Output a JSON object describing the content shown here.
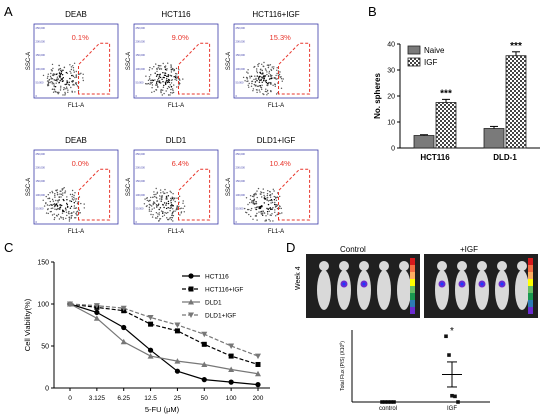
{
  "panel_letters": {
    "a": "A",
    "b": "B",
    "c": "C",
    "d": "D"
  },
  "flow": {
    "xlabel": "FL1-A",
    "ylabel": "SSC-A",
    "tick_labels": [
      "250,000",
      "200,000",
      "150,000",
      "100,000",
      "50,000",
      "0"
    ],
    "plots": [
      {
        "title": "DEAB",
        "percent": "0.1%"
      },
      {
        "title": "HCT116",
        "percent": "9.0%"
      },
      {
        "title": "HCT116+IGF",
        "percent": "15.3%"
      },
      {
        "title": "DEAB",
        "percent": "0.0%"
      },
      {
        "title": "DLD1",
        "percent": "6.4%"
      },
      {
        "title": "DLD1+IGF",
        "percent": "10.4%"
      }
    ]
  },
  "colors": {
    "flow_percent": "#e8352b",
    "gate": "#e8352b",
    "mice_panel": "#202020"
  },
  "mice": {
    "week_label": "Week 4",
    "control_label": "Control",
    "igf_label": "+IGF",
    "scatter_ylabel": "Total Flux (P/S) (X10",
    "scatter_ylabel_sup": "6",
    "scatter_ylabel_end": ")",
    "scatter_categories": [
      "control",
      "IGF"
    ],
    "star": "*"
  },
  "chart_data": [
    {
      "type": "bar",
      "panel": "B",
      "categories": [
        "HCT116",
        "DLD-1"
      ],
      "ylabel": "No. spheres",
      "ylim": [
        0,
        40
      ],
      "yticks": [
        "0",
        "10",
        "20",
        "30",
        "40"
      ],
      "series": [
        {
          "name": "Naive",
          "values": [
            4.8,
            7.5
          ],
          "errors": [
            0.3,
            0.8
          ]
        },
        {
          "name": "IGF",
          "values": [
            17.5,
            35.5
          ],
          "errors": [
            1.2,
            1.5
          ]
        }
      ],
      "significance": [
        "***",
        "***"
      ],
      "legend": "top-left"
    },
    {
      "type": "line",
      "panel": "C",
      "xlabel": "5-FU (μM)",
      "ylabel": "Cell Viability(%)",
      "x": [
        "0",
        "3.125",
        "6.25",
        "12.5",
        "25",
        "50",
        "100",
        "200"
      ],
      "ylim": [
        0,
        150
      ],
      "yticks": [
        "0",
        "50",
        "100",
        "150"
      ],
      "series": [
        {
          "name": "HCT116",
          "values": [
            100,
            90,
            72,
            45,
            20,
            10,
            7,
            4
          ]
        },
        {
          "name": "HCT116+IGF",
          "values": [
            100,
            96,
            92,
            76,
            68,
            52,
            38,
            28
          ]
        },
        {
          "name": "DLD1",
          "values": [
            100,
            83,
            55,
            38,
            32,
            28,
            22,
            17
          ]
        },
        {
          "name": "DLD1+IGF",
          "values": [
            100,
            98,
            95,
            84,
            75,
            64,
            50,
            38
          ]
        }
      ],
      "legend": "top-right"
    },
    {
      "type": "scatter",
      "panel": "D",
      "categories": [
        "control",
        "IGF"
      ],
      "series": [
        {
          "name": "control",
          "values": [
            0,
            0,
            0,
            0,
            0
          ]
        },
        {
          "name": "IGF",
          "values": [
            210,
            150,
            20,
            18,
            0
          ]
        }
      ]
    }
  ]
}
